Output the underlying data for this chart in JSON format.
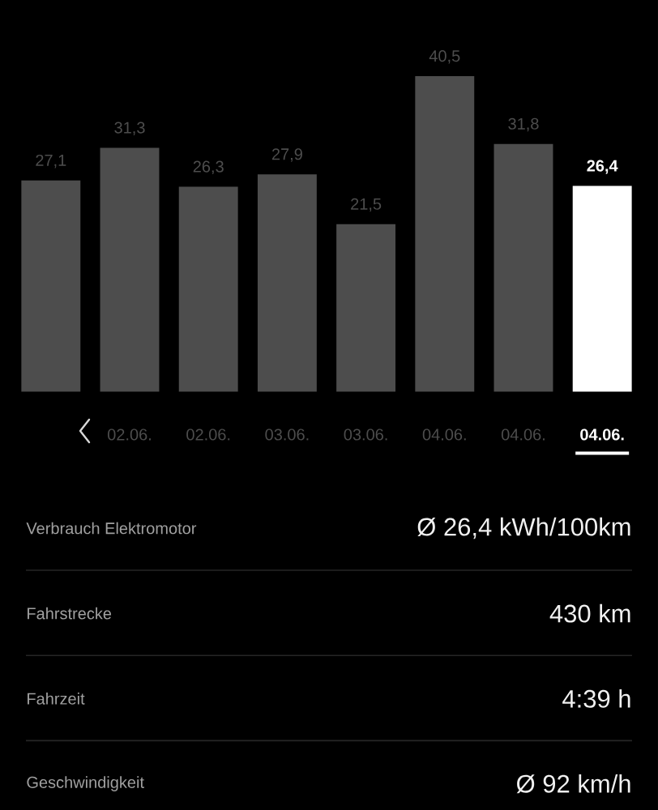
{
  "chart_data": [
    {
      "type": "bar",
      "categories": [
        null,
        "02.06.",
        "02.06.",
        "03.06.",
        "03.06.",
        "04.06.",
        "04.06.",
        "04.06."
      ],
      "values": [
        27.1,
        31.3,
        26.3,
        27.9,
        21.5,
        40.5,
        31.8,
        26.4
      ],
      "colors": [
        "#4d4d4d",
        "#4d4d4d",
        "#4d4d4d",
        "#4d4d4d",
        "#4d4d4d",
        "#4d4d4d",
        "#4d4d4d",
        "#ffffff"
      ],
      "value_labels": [
        "27,1",
        "31,3",
        "26,3",
        "27,9",
        "21,5",
        "40,5",
        "31,8",
        "26,4"
      ]
    },
    {
      "type": "other",
      "annotations": [
        "Verbrauch Elektromotor",
        "Ø 26,4 kWh/100km",
        "Fahrstrecke",
        "430 km",
        "Fahrzeit",
        "4:39 h",
        "Geschwindigkeit",
        "Ø 92 km/h"
      ]
    }
  ]
}
